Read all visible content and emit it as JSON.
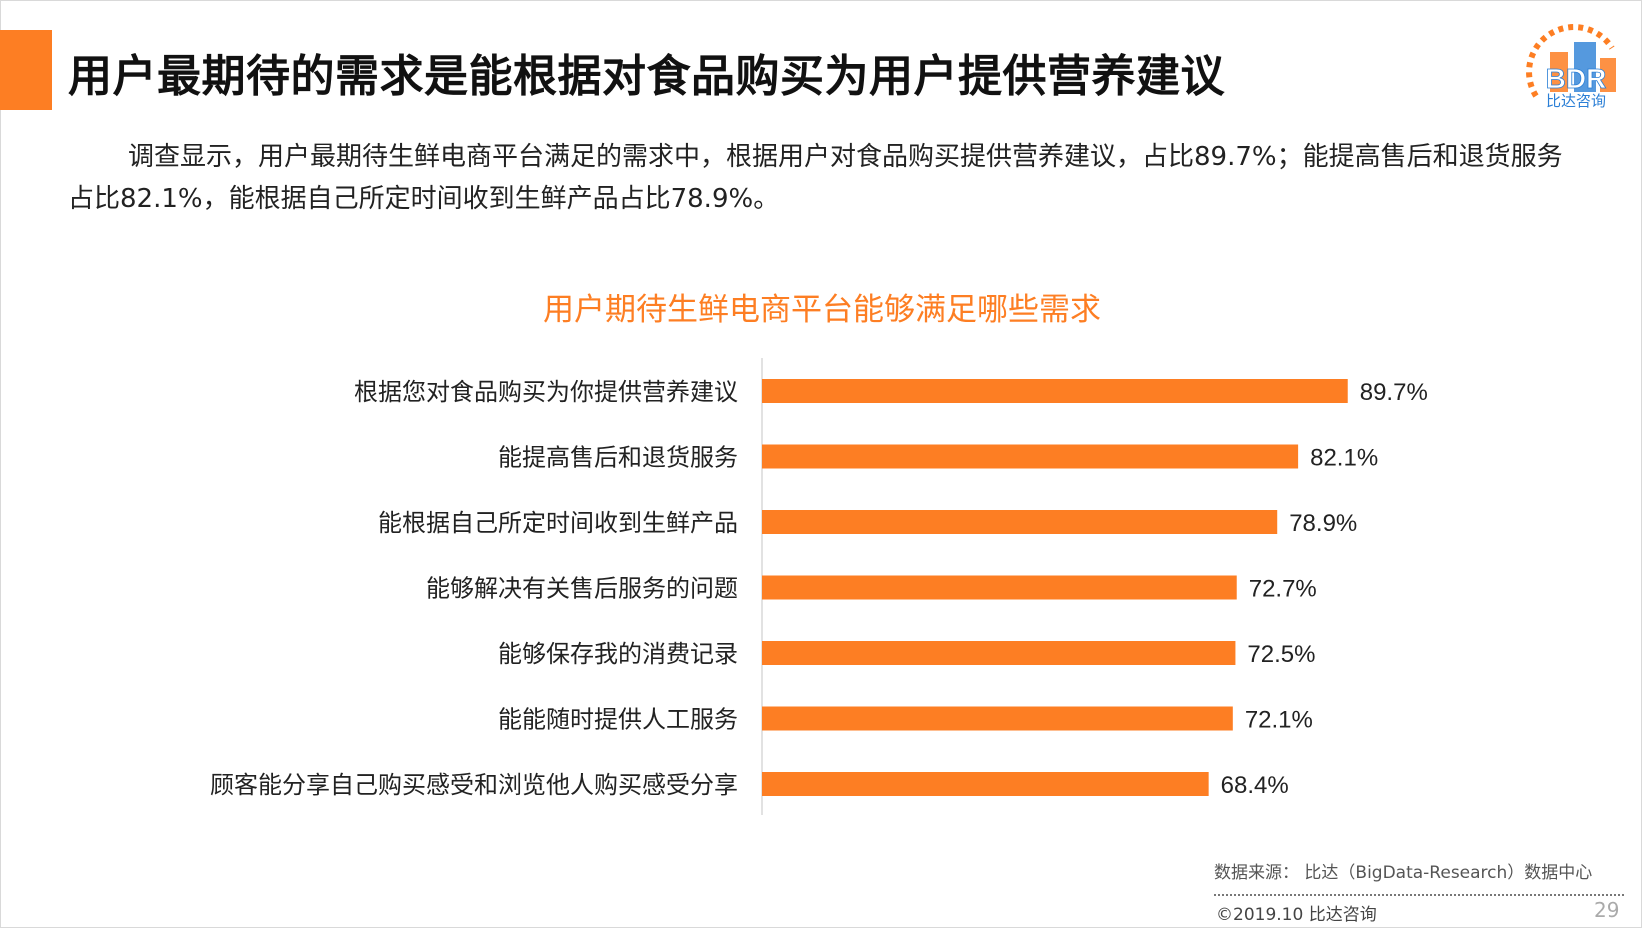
{
  "slide": {
    "title": "用户最期待的需求是能根据对食品购买为用户提供营养建议",
    "summary": "调查显示，用户最期待生鲜电商平台满足的需求中，根据用户对食品购买提供营养建议，占比89.7%；能提高售后和退货服务占比82.1%，能根据自己所定时间收到生鲜产品占比78.9%。",
    "logo": {
      "mark": "BDR",
      "caption": "比达咨询"
    },
    "source": "数据来源： 比达（BigData-Research）数据中心",
    "copyright": "©2019.10 比达咨询",
    "page_number": "29"
  },
  "colors": {
    "accent": "#fd7e23",
    "bar": "#fd7e23",
    "logo_blue": "#2b7fd6"
  },
  "chart_data": {
    "type": "bar",
    "orientation": "horizontal",
    "title": "用户期待生鲜电商平台能够满足哪些需求",
    "categories": [
      "根据您对食品购买为你提供营养建议",
      "能提高售后和退货服务",
      "能根据自己所定时间收到生鲜产品",
      "能够解决有关售后服务的问题",
      "能够保存我的消费记录",
      "能能随时提供人工服务",
      "顾客能分享自己购买感受和浏览他人购买感受分享"
    ],
    "values": [
      89.7,
      82.1,
      78.9,
      72.7,
      72.5,
      72.1,
      68.4
    ],
    "value_labels": [
      "89.7%",
      "82.1%",
      "78.9%",
      "72.7%",
      "72.5%",
      "72.1%",
      "68.4%"
    ],
    "unit": "%",
    "xlim": [
      0,
      100
    ],
    "grid": false,
    "legend": "none"
  }
}
